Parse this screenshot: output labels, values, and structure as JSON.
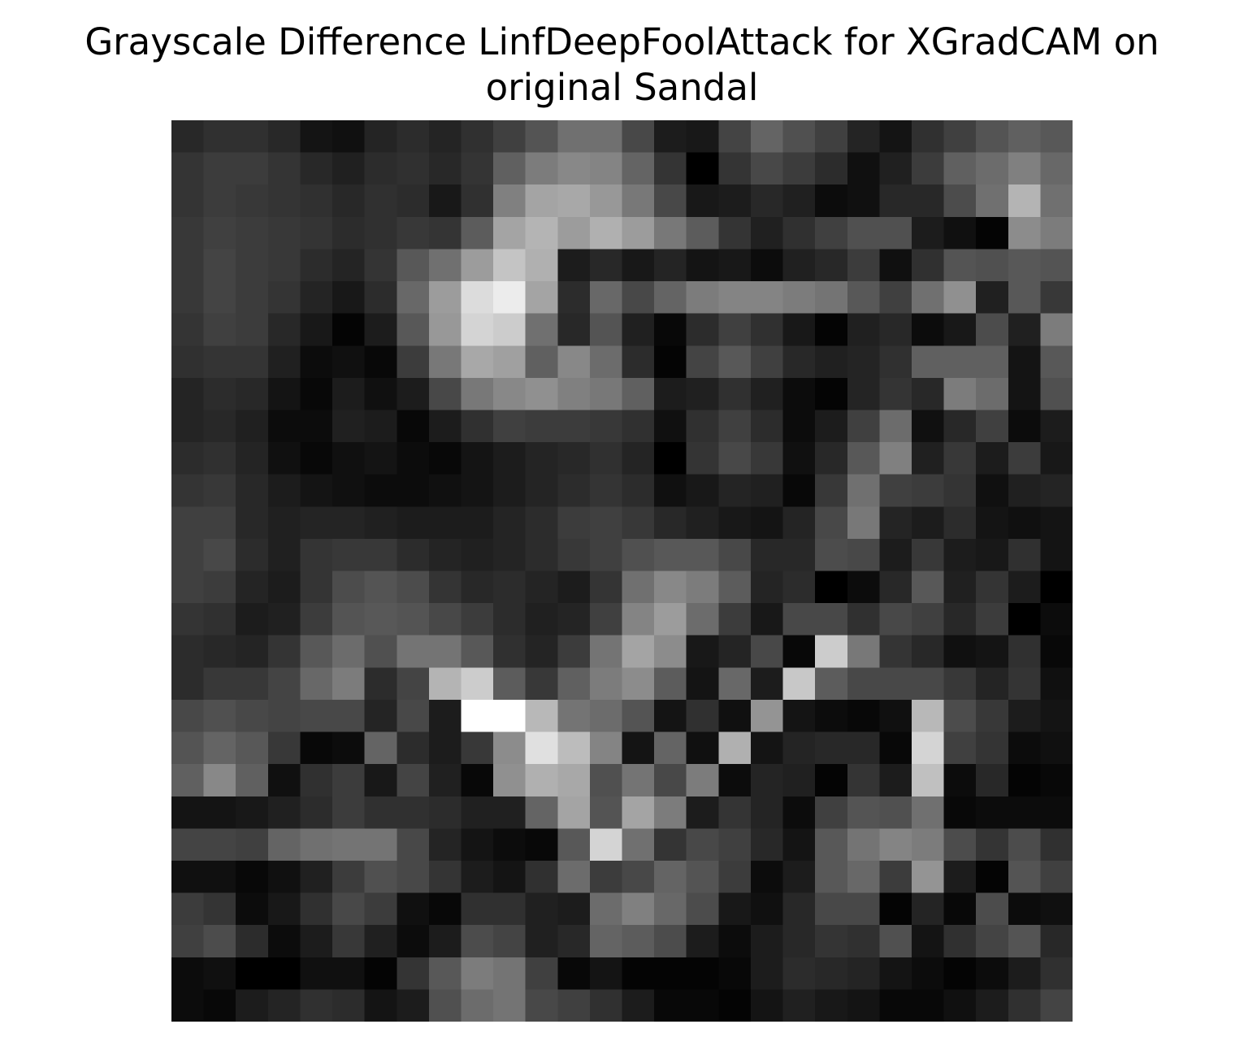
{
  "chart_data": {
    "type": "heatmap",
    "title_lines": [
      "Grayscale Difference LinfDeepFoolAttack for XGradCAM on",
      "original Sandal"
    ],
    "colormap": "gray",
    "axes_visible": false,
    "rows": 28,
    "cols": 28,
    "value_range": [
      0,
      255
    ],
    "values": [
      [
        40,
        48,
        48,
        40,
        20,
        16,
        36,
        44,
        36,
        48,
        64,
        84,
        112,
        112,
        72,
        28,
        24,
        68,
        100,
        80,
        64,
        36,
        20,
        48,
        64,
        84,
        96,
        88
      ],
      [
        52,
        60,
        60,
        52,
        40,
        32,
        44,
        48,
        40,
        52,
        96,
        124,
        136,
        132,
        100,
        52,
        0,
        52,
        72,
        60,
        44,
        16,
        32,
        60,
        96,
        108,
        128,
        104
      ],
      [
        52,
        60,
        56,
        52,
        48,
        40,
        48,
        44,
        24,
        48,
        128,
        164,
        168,
        152,
        120,
        72,
        24,
        28,
        40,
        32,
        12,
        16,
        40,
        40,
        76,
        112,
        180,
        112
      ],
      [
        56,
        64,
        60,
        56,
        52,
        44,
        48,
        56,
        52,
        92,
        164,
        180,
        156,
        176,
        156,
        120,
        92,
        52,
        32,
        48,
        64,
        80,
        80,
        28,
        16,
        4,
        140,
        124
      ],
      [
        56,
        68,
        60,
        56,
        44,
        36,
        52,
        88,
        112,
        156,
        196,
        176,
        28,
        40,
        24,
        36,
        20,
        24,
        12,
        32,
        40,
        60,
        16,
        48,
        84,
        80,
        88,
        84
      ],
      [
        56,
        68,
        60,
        52,
        36,
        24,
        44,
        104,
        156,
        220,
        236,
        164,
        44,
        104,
        72,
        100,
        124,
        132,
        132,
        124,
        116,
        88,
        64,
        112,
        144,
        32,
        88,
        56
      ],
      [
        52,
        64,
        60,
        40,
        24,
        4,
        28,
        88,
        152,
        212,
        204,
        112,
        40,
        84,
        32,
        8,
        44,
        64,
        48,
        24,
        4,
        32,
        40,
        12,
        24,
        76,
        32,
        124
      ],
      [
        48,
        52,
        52,
        32,
        12,
        16,
        8,
        60,
        120,
        168,
        160,
        96,
        136,
        108,
        44,
        4,
        68,
        88,
        64,
        40,
        32,
        36,
        48,
        96,
        96,
        96,
        20,
        88
      ],
      [
        36,
        44,
        40,
        20,
        8,
        28,
        16,
        28,
        72,
        120,
        136,
        144,
        128,
        120,
        96,
        28,
        32,
        48,
        32,
        12,
        4,
        36,
        52,
        40,
        124,
        108,
        20,
        80
      ],
      [
        36,
        40,
        32,
        12,
        12,
        32,
        28,
        8,
        28,
        48,
        64,
        60,
        60,
        56,
        48,
        16,
        48,
        64,
        44,
        12,
        28,
        64,
        108,
        16,
        40,
        64,
        12,
        28
      ],
      [
        44,
        48,
        36,
        16,
        8,
        16,
        20,
        12,
        8,
        20,
        28,
        36,
        40,
        48,
        36,
        0,
        52,
        72,
        56,
        16,
        40,
        88,
        128,
        32,
        56,
        28,
        60,
        24
      ],
      [
        52,
        56,
        40,
        28,
        20,
        16,
        12,
        12,
        16,
        20,
        28,
        36,
        44,
        52,
        44,
        16,
        24,
        36,
        32,
        8,
        56,
        112,
        64,
        60,
        52,
        16,
        32,
        36
      ],
      [
        64,
        64,
        40,
        32,
        36,
        36,
        32,
        28,
        28,
        28,
        36,
        44,
        60,
        64,
        56,
        40,
        32,
        24,
        20,
        36,
        72,
        120,
        36,
        28,
        44,
        20,
        16,
        20
      ],
      [
        64,
        72,
        44,
        32,
        52,
        56,
        56,
        44,
        36,
        32,
        36,
        44,
        56,
        64,
        80,
        88,
        88,
        72,
        40,
        40,
        76,
        72,
        28,
        56,
        28,
        24,
        48,
        20
      ],
      [
        64,
        60,
        36,
        28,
        52,
        76,
        84,
        76,
        52,
        40,
        44,
        36,
        28,
        52,
        112,
        136,
        124,
        92,
        36,
        44,
        0,
        12,
        40,
        88,
        32,
        52,
        28,
        0
      ],
      [
        52,
        48,
        28,
        32,
        60,
        84,
        88,
        84,
        72,
        60,
        44,
        32,
        36,
        64,
        132,
        156,
        108,
        60,
        24,
        72,
        72,
        48,
        72,
        64,
        40,
        60,
        0,
        12
      ],
      [
        44,
        40,
        36,
        52,
        88,
        108,
        80,
        116,
        116,
        88,
        48,
        36,
        60,
        116,
        164,
        140,
        24,
        36,
        72,
        8,
        204,
        120,
        52,
        40,
        16,
        20,
        48,
        8
      ],
      [
        44,
        56,
        56,
        68,
        104,
        124,
        44,
        68,
        180,
        204,
        92,
        56,
        96,
        124,
        140,
        92,
        20,
        104,
        28,
        200,
        92,
        72,
        72,
        72,
        56,
        36,
        52,
        16
      ],
      [
        72,
        80,
        72,
        68,
        72,
        72,
        36,
        72,
        28,
        255,
        255,
        184,
        116,
        108,
        84,
        20,
        48,
        16,
        148,
        20,
        12,
        8,
        16,
        184,
        76,
        56,
        28,
        20
      ],
      [
        84,
        100,
        88,
        56,
        8,
        12,
        100,
        44,
        28,
        56,
        140,
        224,
        188,
        132,
        20,
        100,
        16,
        176,
        20,
        36,
        40,
        40,
        8,
        212,
        64,
        52,
        12,
        16
      ],
      [
        96,
        136,
        96,
        16,
        48,
        60,
        24,
        68,
        32,
        8,
        144,
        176,
        168,
        80,
        116,
        72,
        124,
        12,
        36,
        32,
        4,
        52,
        28,
        192,
        12,
        40,
        4,
        8
      ],
      [
        20,
        20,
        24,
        32,
        44,
        60,
        48,
        48,
        44,
        32,
        32,
        100,
        164,
        84,
        164,
        124,
        28,
        52,
        36,
        12,
        64,
        84,
        80,
        112,
        8,
        12,
        12,
        12
      ],
      [
        68,
        68,
        64,
        100,
        112,
        116,
        116,
        72,
        36,
        20,
        12,
        8,
        88,
        212,
        112,
        52,
        72,
        64,
        40,
        20,
        88,
        116,
        132,
        124,
        76,
        52,
        76,
        48
      ],
      [
        16,
        16,
        8,
        16,
        32,
        60,
        80,
        72,
        52,
        28,
        20,
        48,
        108,
        60,
        72,
        100,
        84,
        60,
        12,
        28,
        88,
        104,
        60,
        148,
        28,
        4,
        84,
        64
      ],
      [
        60,
        52,
        12,
        24,
        48,
        72,
        60,
        16,
        8,
        48,
        48,
        32,
        28,
        108,
        128,
        104,
        76,
        24,
        16,
        40,
        72,
        72,
        4,
        36,
        8,
        76,
        12,
        16
      ],
      [
        64,
        76,
        44,
        12,
        28,
        56,
        32,
        12,
        28,
        76,
        68,
        32,
        40,
        100,
        92,
        76,
        28,
        12,
        28,
        40,
        52,
        48,
        80,
        20,
        48,
        68,
        84,
        40
      ],
      [
        12,
        16,
        0,
        0,
        16,
        16,
        4,
        52,
        88,
        124,
        116,
        64,
        8,
        20,
        4,
        4,
        4,
        8,
        28,
        44,
        40,
        36,
        20,
        12,
        4,
        12,
        28,
        48
      ],
      [
        12,
        8,
        28,
        36,
        48,
        44,
        20,
        28,
        80,
        108,
        116,
        72,
        64,
        48,
        28,
        8,
        8,
        4,
        20,
        32,
        24,
        20,
        8,
        8,
        16,
        28,
        48,
        68
      ]
    ]
  }
}
